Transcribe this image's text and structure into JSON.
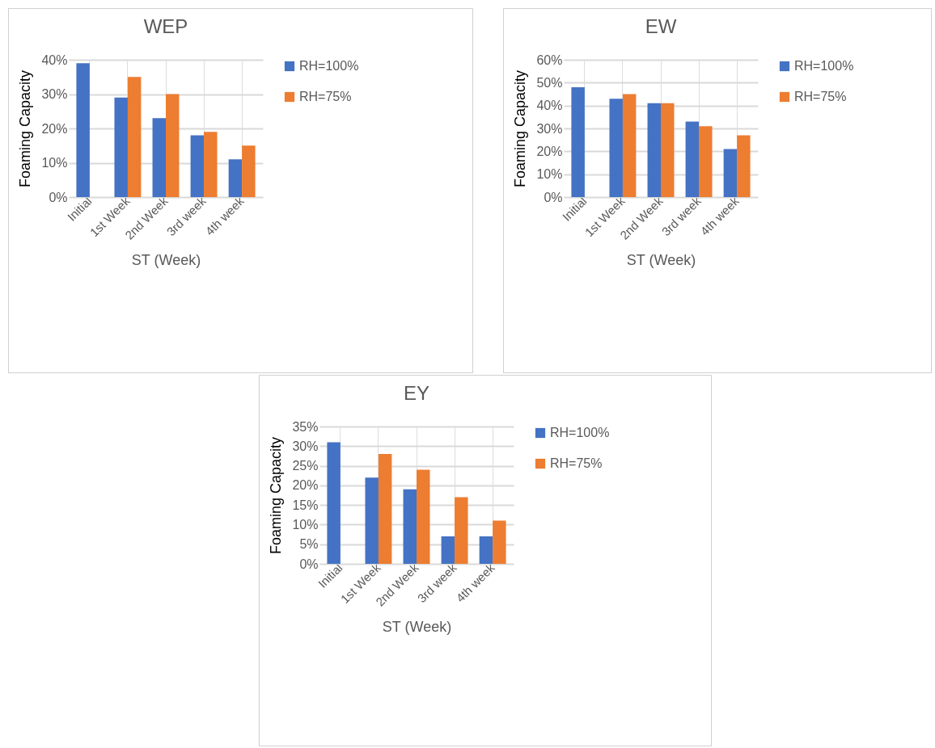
{
  "chart_data": [
    {
      "type": "bar",
      "title": "WEP",
      "xlabel": "ST (Week)",
      "ylabel": "Foaming  Capacity",
      "categories": [
        "Initial",
        "1st Week",
        "2nd Week",
        "3rd week",
        "4th week"
      ],
      "series": [
        {
          "name": "RH=100%",
          "color": "#4472c4",
          "values": [
            39,
            29,
            23,
            18,
            11
          ]
        },
        {
          "name": "RH=75%",
          "color": "#ed7d31",
          "values": [
            null,
            35,
            30,
            19,
            15
          ]
        }
      ],
      "ylim": [
        0,
        40
      ],
      "yticks": [
        {
          "value": 0,
          "label": "0%"
        },
        {
          "value": 10,
          "label": "10%"
        },
        {
          "value": 20,
          "label": "20%"
        },
        {
          "value": 30,
          "label": "30%"
        },
        {
          "value": 40,
          "label": "40%"
        }
      ],
      "grid": true,
      "legend": "right"
    },
    {
      "type": "bar",
      "title": "EW",
      "xlabel": "ST (Week)",
      "ylabel": "Foaming  Capacity",
      "categories": [
        "Initial",
        "1st Week",
        "2nd Week",
        "3rd week",
        "4th week"
      ],
      "series": [
        {
          "name": "RH=100%",
          "color": "#4472c4",
          "values": [
            48,
            43,
            41,
            33,
            21
          ]
        },
        {
          "name": "RH=75%",
          "color": "#ed7d31",
          "values": [
            null,
            45,
            41,
            31,
            27
          ]
        }
      ],
      "ylim": [
        0,
        60
      ],
      "yticks": [
        {
          "value": 0,
          "label": "0%"
        },
        {
          "value": 10,
          "label": "10%"
        },
        {
          "value": 20,
          "label": "20%"
        },
        {
          "value": 30,
          "label": "30%"
        },
        {
          "value": 40,
          "label": "40%"
        },
        {
          "value": 50,
          "label": "50%"
        },
        {
          "value": 60,
          "label": "60%"
        }
      ],
      "grid": true,
      "legend": "right"
    },
    {
      "type": "bar",
      "title": "EY",
      "xlabel": "ST (Week)",
      "ylabel": "Foaming  Capacity",
      "categories": [
        "Initial",
        "1st Week",
        "2nd Week",
        "3rd week",
        "4th week"
      ],
      "series": [
        {
          "name": "RH=100%",
          "color": "#4472c4",
          "values": [
            31,
            22,
            19,
            7,
            7
          ]
        },
        {
          "name": "RH=75%",
          "color": "#ed7d31",
          "values": [
            null,
            28,
            24,
            17,
            11
          ]
        }
      ],
      "ylim": [
        0,
        35
      ],
      "yticks": [
        {
          "value": 0,
          "label": "0%"
        },
        {
          "value": 5,
          "label": "5%"
        },
        {
          "value": 10,
          "label": "10%"
        },
        {
          "value": 15,
          "label": "15%"
        },
        {
          "value": 20,
          "label": "20%"
        },
        {
          "value": 25,
          "label": "25%"
        },
        {
          "value": 30,
          "label": "30%"
        },
        {
          "value": 35,
          "label": "35%"
        }
      ],
      "grid": true,
      "legend": "right"
    }
  ]
}
